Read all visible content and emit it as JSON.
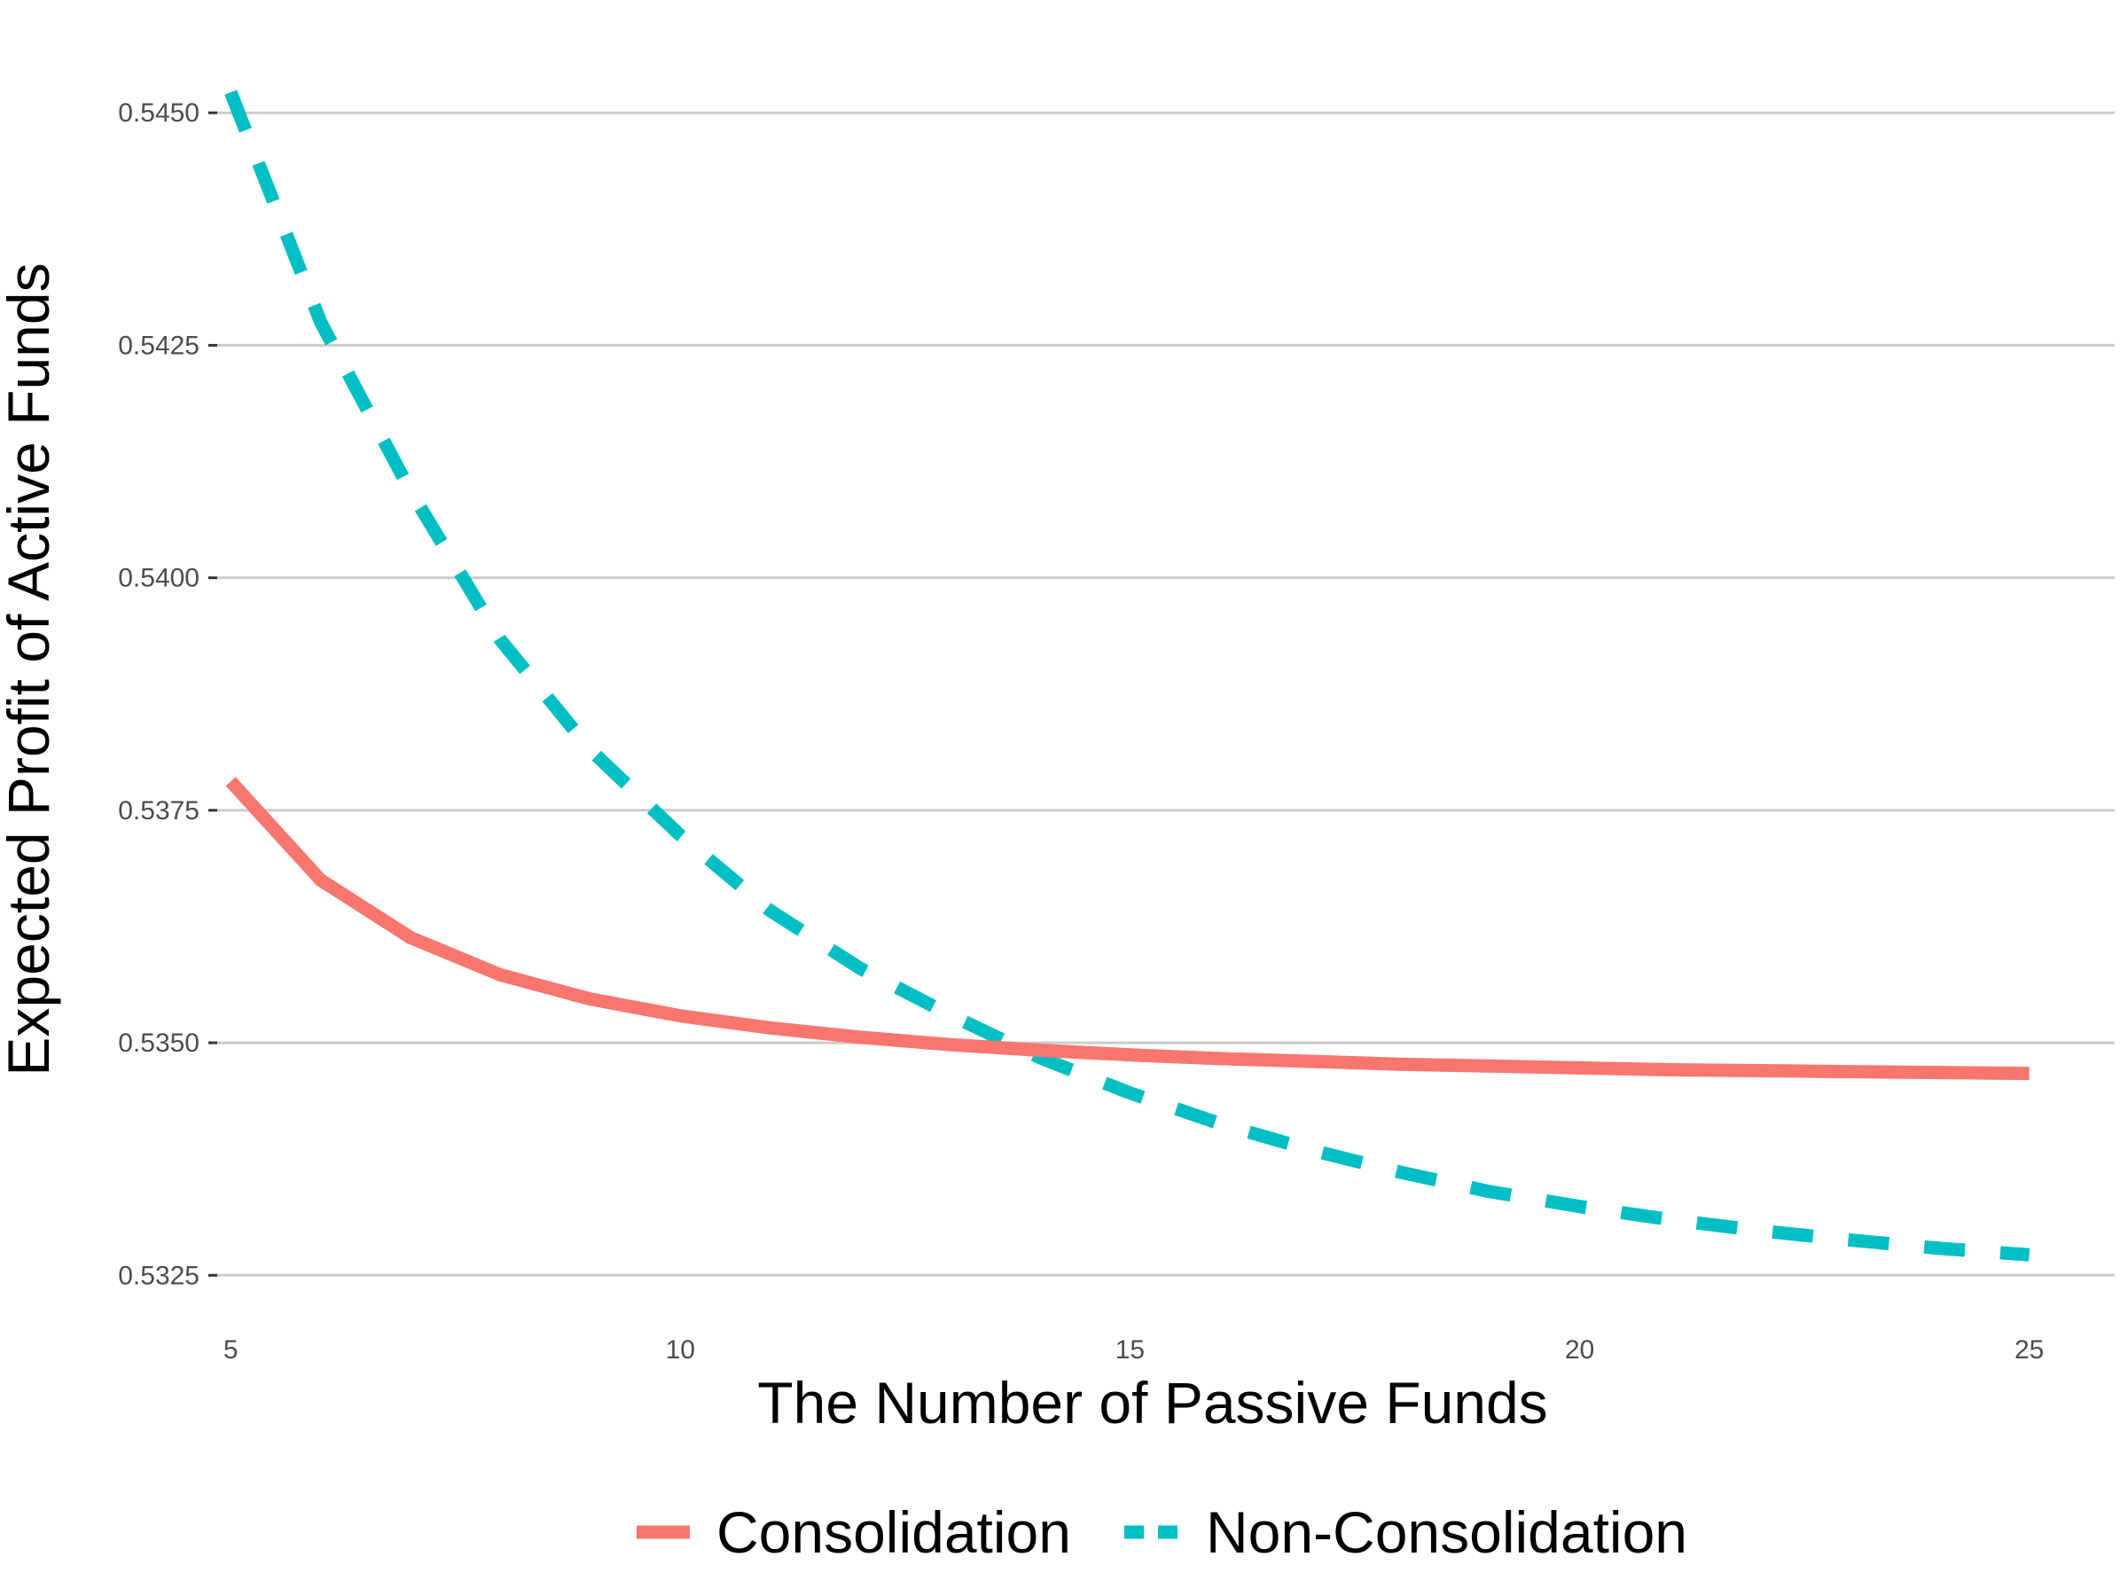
{
  "chart_data": {
    "type": "line",
    "title": "",
    "xlabel": "The Number of Passive Funds",
    "ylabel": "Expected Profit of Active Funds",
    "xlim": [
      4.85,
      25.95
    ],
    "ylim": [
      0.53215,
      0.54545
    ],
    "x_ticks": [
      5,
      10,
      15,
      20,
      25
    ],
    "x_tick_labels": [
      "5",
      "10",
      "15",
      "20",
      "25"
    ],
    "y_ticks": [
      0.5325,
      0.535,
      0.5375,
      0.54,
      0.5425,
      0.545
    ],
    "y_tick_labels": [
      "0.5325",
      "0.5350",
      "0.5375",
      "0.5400",
      "0.5425",
      "0.5450"
    ],
    "grid": "horizontal",
    "legend_position": "bottom",
    "x": [
      5,
      6,
      7,
      8,
      9,
      10,
      11,
      12,
      13,
      14,
      15,
      16,
      17,
      18,
      19,
      20,
      21,
      22,
      23,
      24,
      25
    ],
    "series": [
      {
        "name": "Consolidation",
        "color": "#F8766D",
        "dash": "solid",
        "values": [
          0.53781,
          0.53675,
          0.53613,
          0.53573,
          0.53547,
          0.53529,
          0.53516,
          0.53506,
          0.53498,
          0.53492,
          0.53487,
          0.53483,
          0.5348,
          0.53477,
          0.53475,
          0.53473,
          0.53471,
          0.5347,
          0.53469,
          0.53468,
          0.53467
        ]
      },
      {
        "name": "Non-Consolidation",
        "color": "#00BFC4",
        "dash": "dashed",
        "values": [
          0.54522,
          0.54275,
          0.54093,
          0.53933,
          0.53815,
          0.53723,
          0.53642,
          0.5358,
          0.5353,
          0.53484,
          0.53446,
          0.53413,
          0.53385,
          0.53361,
          0.5334,
          0.53324,
          0.5331,
          0.53298,
          0.53288,
          0.53279,
          0.53272
        ]
      }
    ]
  }
}
